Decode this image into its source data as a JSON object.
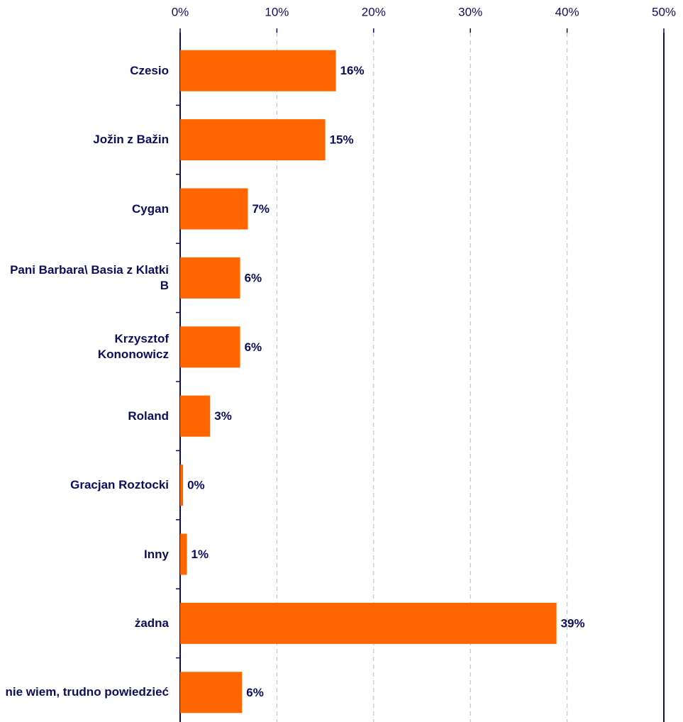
{
  "chart_data": {
    "type": "bar",
    "orientation": "horizontal",
    "categories": [
      "Czesio",
      "Jožin z Bažin",
      "Cygan",
      "Pani Barbara\\ Basia z Klatki B",
      "Krzysztof Kononowicz",
      "Roland",
      "Gracjan Roztocki",
      "Inny",
      "żadna",
      "nie wiem, trudno powiedzieć"
    ],
    "values": [
      16.1,
      15,
      7,
      6.2,
      6.2,
      3.1,
      0.3,
      0.7,
      38.9,
      6.4
    ],
    "value_labels": [
      "16%",
      "15%",
      "7%",
      "6%",
      "6%",
      "3%",
      "0%",
      "1%",
      "39%",
      "6%"
    ],
    "color": "#ff6600",
    "xlim": [
      0,
      50
    ],
    "xticks": [
      {
        "value": 0,
        "label": "0%"
      },
      {
        "value": 10,
        "label": "10%"
      },
      {
        "value": 20,
        "label": "20%"
      },
      {
        "value": 30,
        "label": "30%"
      },
      {
        "value": 40,
        "label": "40%"
      },
      {
        "value": 50,
        "label": "50%"
      }
    ],
    "grid": true
  }
}
